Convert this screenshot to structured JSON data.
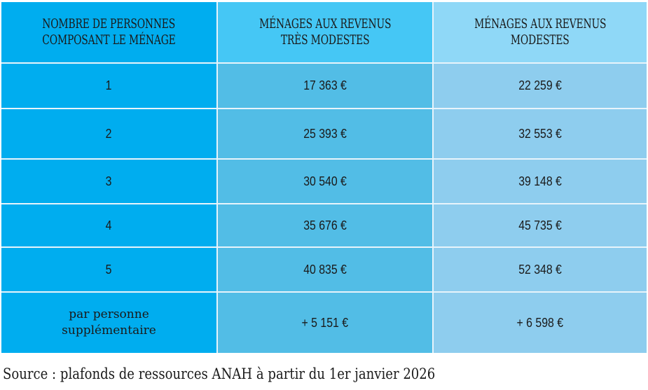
{
  "table": {
    "headers": [
      "NOMBRE DE PERSONNES COMPOSANT LE MÉNAGE",
      "MÉNAGES AUX REVENUS TRÈS MODESTES",
      "MÉNAGES AUX REVENUS MODESTES"
    ],
    "header_lines": [
      [
        "NOMBRE DE PERSONNES",
        "COMPOSANT LE MÉNAGE"
      ],
      [
        "MÉNAGES AUX REVENUS",
        "TRÈS MODESTES"
      ],
      [
        "MÉNAGES AUX REVENUS",
        "MODESTES"
      ]
    ],
    "rows": [
      {
        "persons": "1",
        "tres_modestes": "17 363 €",
        "modestes": "22 259 €"
      },
      {
        "persons": "2",
        "tres_modestes": "25 393 €",
        "modestes": "32 553 €"
      },
      {
        "persons": "3",
        "tres_modestes": "30 540 €",
        "modestes": "39 148 €"
      },
      {
        "persons": "4",
        "tres_modestes": "35 676 €",
        "modestes": "45 735 €"
      },
      {
        "persons": "5",
        "tres_modestes": "40 835 €",
        "modestes": "52 348 €"
      }
    ],
    "extra_row": {
      "label_lines": [
        "par personne",
        "supplémentaire"
      ],
      "tres_modestes": "+ 5 151 €",
      "modestes": "+ 6 598 €"
    }
  },
  "source": "Source : plafonds de ressources ANAH à partir du 1er janvier 2026",
  "colors": {
    "col1": "#00adef",
    "col2_header": "#45c7f5",
    "col3_header": "#8fd8f7",
    "col2": "#52bde6",
    "col3": "#8ecdee"
  }
}
